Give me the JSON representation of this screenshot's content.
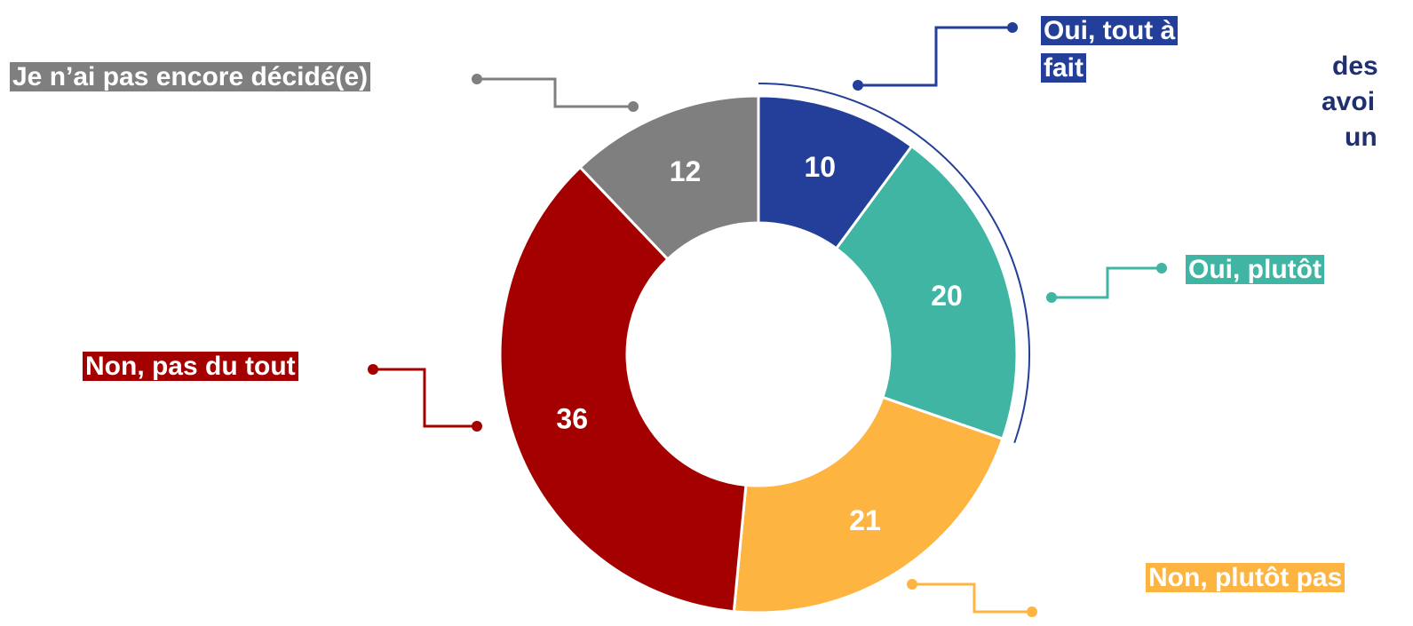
{
  "chart_data": {
    "type": "donut",
    "categories": [
      "Oui, tout à fait",
      "Oui, plutôt",
      "Non, plutôt pas",
      "Non, pas du tout",
      "Je n’ai pas encore décidé(e)"
    ],
    "values": [
      10,
      20,
      21,
      36,
      12
    ],
    "colors": [
      "#233f99",
      "#40b5a3",
      "#fdb441",
      "#a50000",
      "#7f7f7f"
    ],
    "annotations": [
      "des",
      "avoi",
      "un"
    ]
  }
}
